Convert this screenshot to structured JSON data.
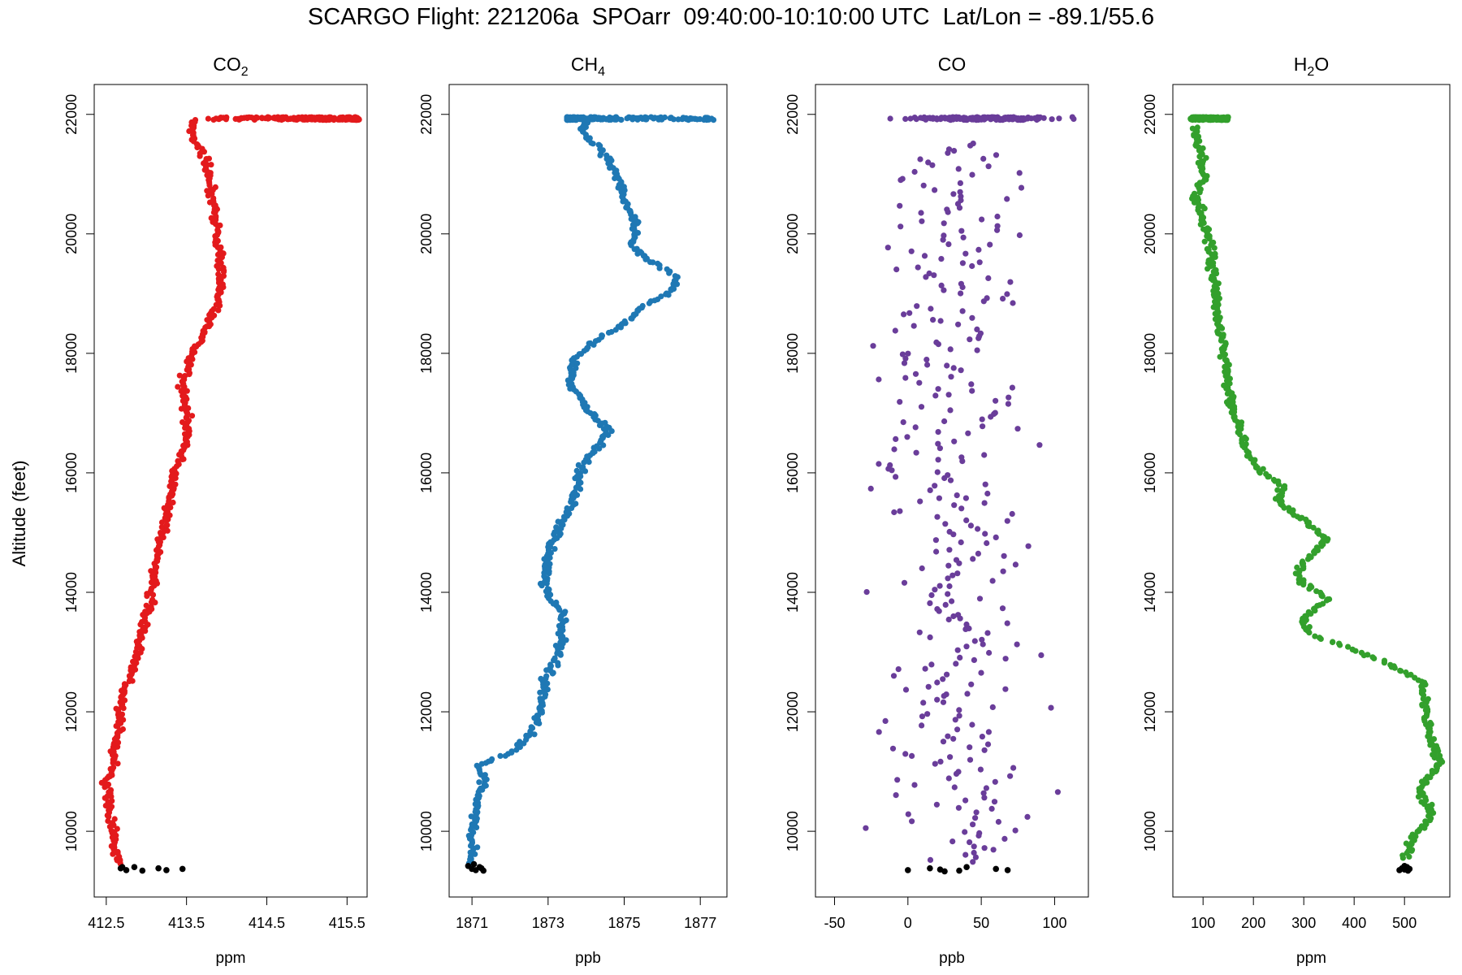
{
  "title": "SCARGO Flight: 221206a  SPOarr  09:40:00-10:10:00 UTC  Lat/Lon = -89.1/55.6",
  "ylabel": "Altitude (feet)",
  "chart_data": [
    {
      "type": "scatter",
      "title_main": "CO",
      "title_sub": "2",
      "xlabel": "ppm",
      "color": "#e31a1c",
      "ground_color": "#000000",
      "xlim": [
        412.35,
        415.75
      ],
      "xticks": [
        412.5,
        413.5,
        414.5,
        415.5
      ],
      "ylim": [
        8900,
        22500
      ],
      "yticks": [
        10000,
        12000,
        14000,
        16000,
        18000,
        20000,
        22000
      ],
      "profile": [
        [
          412.65,
          9450
        ],
        [
          412.6,
          9800
        ],
        [
          412.55,
          10300
        ],
        [
          412.5,
          10800
        ],
        [
          412.6,
          11200
        ],
        [
          412.65,
          11700
        ],
        [
          412.7,
          12300
        ],
        [
          412.85,
          12800
        ],
        [
          412.95,
          13300
        ],
        [
          413.05,
          13800
        ],
        [
          413.1,
          14400
        ],
        [
          413.2,
          15000
        ],
        [
          413.3,
          15500
        ],
        [
          413.35,
          16000
        ],
        [
          413.5,
          16500
        ],
        [
          413.5,
          17000
        ],
        [
          413.45,
          17500
        ],
        [
          413.55,
          17900
        ],
        [
          413.7,
          18300
        ],
        [
          413.85,
          18700
        ],
        [
          413.95,
          19300
        ],
        [
          413.9,
          19800
        ],
        [
          413.85,
          20300
        ],
        [
          413.8,
          20800
        ],
        [
          413.75,
          21200
        ],
        [
          413.55,
          21700
        ],
        [
          413.6,
          21900
        ]
      ],
      "plateau": {
        "altitude": 21930,
        "x_range": [
          413.6,
          415.65
        ]
      },
      "ground": [
        [
          412.68,
          9380
        ],
        [
          412.75,
          9350
        ],
        [
          412.85,
          9400
        ],
        [
          412.95,
          9340
        ],
        [
          413.15,
          9380
        ],
        [
          413.25,
          9350
        ],
        [
          413.45,
          9370
        ],
        [
          412.7,
          9400
        ]
      ]
    },
    {
      "type": "scatter",
      "title_main": "CH",
      "title_sub": "4",
      "xlabel": "ppb",
      "color": "#1f78b4",
      "ground_color": "#000000",
      "xlim": [
        1870.4,
        1877.7
      ],
      "xticks": [
        1871,
        1873,
        1875,
        1877
      ],
      "ylim": [
        8900,
        22500
      ],
      "yticks": [
        10000,
        12000,
        14000,
        16000,
        18000,
        20000,
        22000
      ],
      "profile": [
        [
          1871.0,
          9450
        ],
        [
          1871.0,
          9900
        ],
        [
          1871.1,
          10300
        ],
        [
          1871.3,
          10800
        ],
        [
          1871.2,
          11100
        ],
        [
          1872.0,
          11300
        ],
        [
          1872.5,
          11600
        ],
        [
          1872.8,
          12000
        ],
        [
          1872.9,
          12500
        ],
        [
          1873.3,
          13000
        ],
        [
          1873.4,
          13600
        ],
        [
          1872.9,
          14100
        ],
        [
          1873.0,
          14600
        ],
        [
          1873.3,
          15100
        ],
        [
          1873.7,
          15600
        ],
        [
          1873.9,
          16100
        ],
        [
          1874.6,
          16700
        ],
        [
          1874.0,
          17100
        ],
        [
          1873.6,
          17500
        ],
        [
          1873.7,
          17900
        ],
        [
          1874.2,
          18200
        ],
        [
          1875.0,
          18500
        ],
        [
          1875.5,
          18800
        ],
        [
          1876.2,
          19000
        ],
        [
          1876.4,
          19300
        ],
        [
          1875.8,
          19500
        ],
        [
          1875.2,
          19800
        ],
        [
          1875.3,
          20200
        ],
        [
          1875.0,
          20600
        ],
        [
          1874.8,
          21000
        ],
        [
          1874.4,
          21400
        ],
        [
          1873.9,
          21700
        ],
        [
          1874.0,
          21900
        ]
      ],
      "plateau": {
        "altitude": 21930,
        "x_range": [
          1873.5,
          1877.4
        ]
      },
      "ground": [
        [
          1870.9,
          9420
        ],
        [
          1871.0,
          9370
        ],
        [
          1871.1,
          9350
        ],
        [
          1871.2,
          9400
        ],
        [
          1871.3,
          9340
        ],
        [
          1871.05,
          9450
        ],
        [
          1871.25,
          9380
        ]
      ]
    },
    {
      "type": "scatter",
      "title_main": "CO",
      "title_sub": "",
      "xlabel": "ppb",
      "color": "#6a3d9a",
      "ground_color": "#000000",
      "xlim": [
        -63,
        123
      ],
      "xticks": [
        -50,
        0,
        50,
        100
      ],
      "ylim": [
        8900,
        22500
      ],
      "yticks": [
        10000,
        12000,
        14000,
        16000,
        18000,
        20000,
        22000
      ],
      "profile": [
        [
          30,
          9500
        ],
        [
          32,
          10000
        ],
        [
          35,
          10500
        ],
        [
          33,
          11000
        ],
        [
          36,
          11500
        ],
        [
          34,
          12000
        ],
        [
          30,
          12500
        ],
        [
          32,
          13000
        ],
        [
          35,
          13500
        ],
        [
          30,
          14000
        ],
        [
          33,
          14500
        ],
        [
          35,
          15000
        ],
        [
          32,
          15500
        ],
        [
          30,
          16000
        ],
        [
          34,
          16500
        ],
        [
          36,
          17000
        ],
        [
          32,
          17500
        ],
        [
          30,
          18000
        ],
        [
          34,
          18500
        ],
        [
          35,
          19000
        ],
        [
          30,
          19500
        ],
        [
          32,
          20000
        ],
        [
          36,
          20500
        ],
        [
          30,
          21000
        ],
        [
          28,
          21500
        ]
      ],
      "plateau": {
        "altitude": 21930,
        "x_range": [
          -12,
          113
        ]
      },
      "ground": [
        [
          0,
          9350
        ],
        [
          15,
          9380
        ],
        [
          25,
          9330
        ],
        [
          40,
          9400
        ],
        [
          60,
          9370
        ],
        [
          68,
          9350
        ],
        [
          22,
          9360
        ],
        [
          35,
          9340
        ]
      ]
    },
    {
      "type": "scatter",
      "title_main": "H",
      "title_sub": "2",
      "title_tail": "O",
      "xlabel": "ppm",
      "color": "#33a02c",
      "ground_color": "#000000",
      "xlim": [
        40,
        590
      ],
      "xticks": [
        100,
        200,
        300,
        400,
        500
      ],
      "ylim": [
        8900,
        22500
      ],
      "yticks": [
        10000,
        12000,
        14000,
        16000,
        18000,
        20000,
        22000
      ],
      "profile": [
        [
          500,
          9550
        ],
        [
          520,
          9900
        ],
        [
          555,
          10300
        ],
        [
          530,
          10700
        ],
        [
          570,
          11100
        ],
        [
          550,
          11600
        ],
        [
          540,
          12100
        ],
        [
          535,
          12500
        ],
        [
          470,
          12800
        ],
        [
          380,
          13100
        ],
        [
          310,
          13300
        ],
        [
          300,
          13600
        ],
        [
          350,
          13900
        ],
        [
          290,
          14200
        ],
        [
          300,
          14500
        ],
        [
          345,
          14900
        ],
        [
          300,
          15200
        ],
        [
          250,
          15500
        ],
        [
          260,
          15800
        ],
        [
          215,
          16000
        ],
        [
          190,
          16300
        ],
        [
          180,
          16600
        ],
        [
          160,
          17000
        ],
        [
          150,
          17400
        ],
        [
          145,
          17800
        ],
        [
          140,
          18200
        ],
        [
          130,
          18600
        ],
        [
          125,
          19000
        ],
        [
          120,
          19400
        ],
        [
          115,
          19800
        ],
        [
          100,
          20200
        ],
        [
          85,
          20600
        ],
        [
          100,
          20900
        ],
        [
          95,
          21300
        ],
        [
          90,
          21600
        ],
        [
          85,
          21800
        ]
      ],
      "plateau": {
        "altitude": 21930,
        "x_range": [
          75,
          150
        ]
      },
      "ground": [
        [
          495,
          9380
        ],
        [
          500,
          9360
        ],
        [
          505,
          9400
        ],
        [
          510,
          9370
        ],
        [
          490,
          9350
        ],
        [
          500,
          9420
        ],
        [
          507,
          9340
        ]
      ]
    }
  ]
}
